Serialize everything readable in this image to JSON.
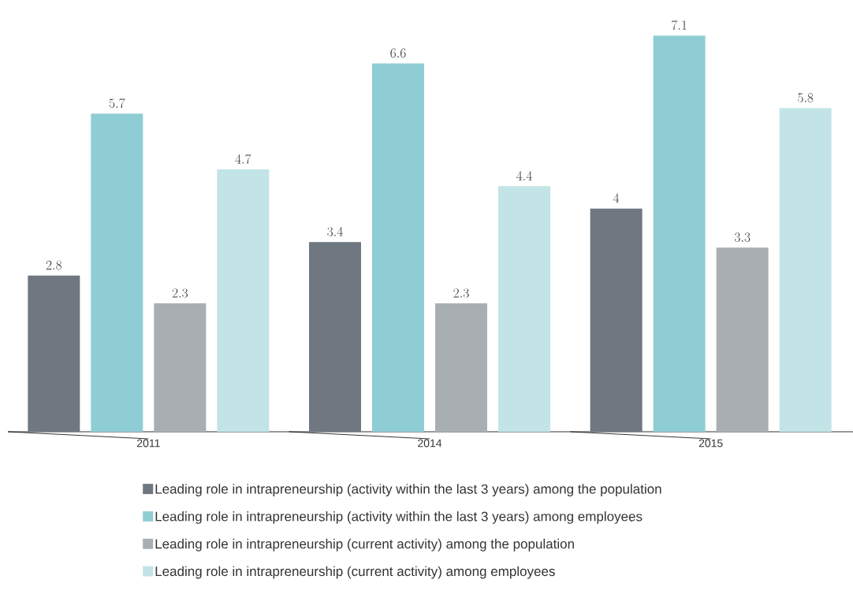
{
  "chart_data": {
    "type": "bar",
    "categories": [
      "2011",
      "2014",
      "2015"
    ],
    "series": [
      {
        "name": "Leading role in intrapreneurship (activity within the last 3 years) among the population",
        "color": "#6f7780",
        "values": [
          2.8,
          3.4,
          4
        ]
      },
      {
        "name": "Leading role in intrapreneurship (activity within the last 3 years) among employees",
        "color": "#8fcdd4",
        "values": [
          5.7,
          6.6,
          7.1
        ]
      },
      {
        "name": "Leading role in intrapreneurship (current activity) among the population",
        "color": "#a9aeb3",
        "values": [
          2.3,
          2.3,
          3.3
        ]
      },
      {
        "name": "Leading role in intrapreneurship (current activity) among employees",
        "color": "#c2e4e6",
        "values": [
          4.7,
          4.4,
          5.8
        ]
      }
    ],
    "data_labels": true,
    "legend": "bottom"
  }
}
